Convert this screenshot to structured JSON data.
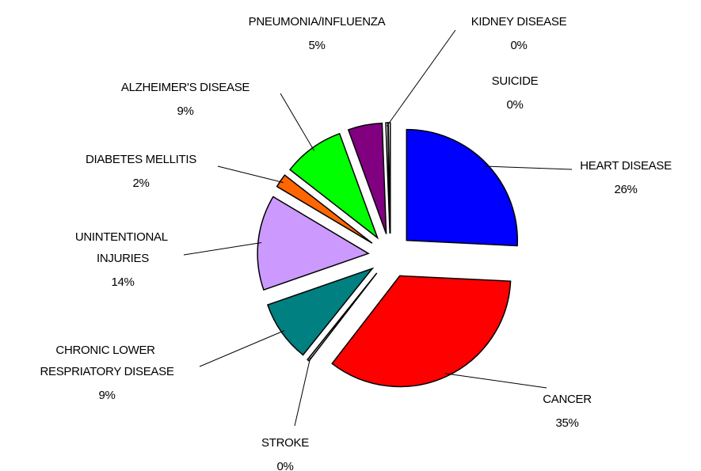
{
  "chart_data": {
    "type": "pie",
    "categories": [
      "HEART DISEASE",
      "CANCER",
      "STROKE",
      "CHRONIC LOWER RESPRIATORY DISEASE",
      "UNINTENTIONAL INJURIES",
      "DIABETES MELLITIS",
      "ALZHEIMER'S DISEASE",
      "PNEUMONIA/INFLUENZA",
      "KIDNEY DISEASE",
      "SUICIDE"
    ],
    "values": [
      26,
      35,
      0.3,
      9,
      14,
      2,
      9,
      5,
      0.3,
      0.3
    ],
    "value_labels": [
      "26%",
      "35%",
      "0%",
      "9%",
      "14%",
      "2%",
      "9%",
      "5%",
      "0%",
      "0%"
    ],
    "colors": [
      "#0000ff",
      "#ff0000",
      "#c0c0c0",
      "#008080",
      "#cc99ff",
      "#ff6600",
      "#00ff00",
      "#800080",
      "#ffffff",
      "#ffffff"
    ],
    "exploded": true
  }
}
